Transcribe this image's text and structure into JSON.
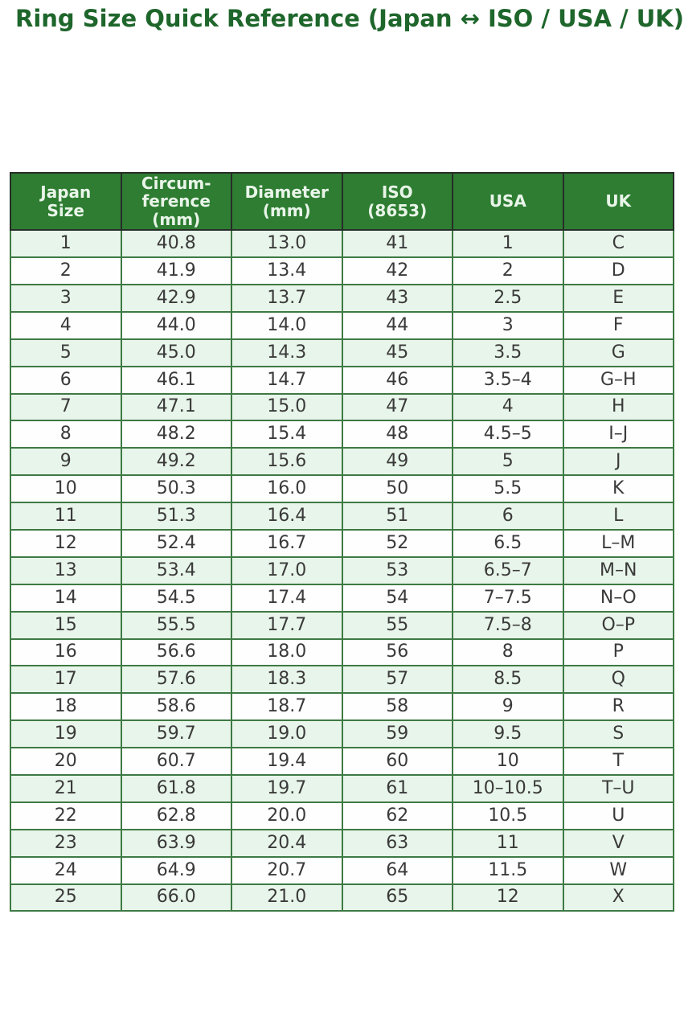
{
  "title": "Ring Size Quick Reference (Japan ↔ ISO / USA / UK)",
  "colors": {
    "title_green": "#1e662b",
    "header_bg_green": "#2e7d32",
    "header_text": "#e9f5e9",
    "row_alt_green": "#e8f5ea",
    "row_white": "#fdfefd",
    "grid_green": "#3e7a44",
    "cell_text": "#3a3a3a"
  },
  "chart_data": {
    "type": "table",
    "title": "Ring Size Quick Reference (Japan ↔ ISO / USA / UK)",
    "columns": [
      "Japan\nSize",
      "Circum-\nference\n(mm)",
      "Diameter\n(mm)",
      "ISO\n(8653)",
      "USA",
      "UK"
    ],
    "rows": [
      [
        "1",
        "40.8",
        "13.0",
        "41",
        "1",
        "C"
      ],
      [
        "2",
        "41.9",
        "13.4",
        "42",
        "2",
        "D"
      ],
      [
        "3",
        "42.9",
        "13.7",
        "43",
        "2.5",
        "E"
      ],
      [
        "4",
        "44.0",
        "14.0",
        "44",
        "3",
        "F"
      ],
      [
        "5",
        "45.0",
        "14.3",
        "45",
        "3.5",
        "G"
      ],
      [
        "6",
        "46.1",
        "14.7",
        "46",
        "3.5–4",
        "G–H"
      ],
      [
        "7",
        "47.1",
        "15.0",
        "47",
        "4",
        "H"
      ],
      [
        "8",
        "48.2",
        "15.4",
        "48",
        "4.5–5",
        "I–J"
      ],
      [
        "9",
        "49.2",
        "15.6",
        "49",
        "5",
        "J"
      ],
      [
        "10",
        "50.3",
        "16.0",
        "50",
        "5.5",
        "K"
      ],
      [
        "11",
        "51.3",
        "16.4",
        "51",
        "6",
        "L"
      ],
      [
        "12",
        "52.4",
        "16.7",
        "52",
        "6.5",
        "L–M"
      ],
      [
        "13",
        "53.4",
        "17.0",
        "53",
        "6.5–7",
        "M–N"
      ],
      [
        "14",
        "54.5",
        "17.4",
        "54",
        "7–7.5",
        "N–O"
      ],
      [
        "15",
        "55.5",
        "17.7",
        "55",
        "7.5–8",
        "O–P"
      ],
      [
        "16",
        "56.6",
        "18.0",
        "56",
        "8",
        "P"
      ],
      [
        "17",
        "57.6",
        "18.3",
        "57",
        "8.5",
        "Q"
      ],
      [
        "18",
        "58.6",
        "18.7",
        "58",
        "9",
        "R"
      ],
      [
        "19",
        "59.7",
        "19.0",
        "59",
        "9.5",
        "S"
      ],
      [
        "20",
        "60.7",
        "19.4",
        "60",
        "10",
        "T"
      ],
      [
        "21",
        "61.8",
        "19.7",
        "61",
        "10–10.5",
        "T–U"
      ],
      [
        "22",
        "62.8",
        "20.0",
        "62",
        "10.5",
        "U"
      ],
      [
        "23",
        "63.9",
        "20.4",
        "63",
        "11",
        "V"
      ],
      [
        "24",
        "64.9",
        "20.7",
        "64",
        "11.5",
        "W"
      ],
      [
        "25",
        "66.0",
        "21.0",
        "65",
        "12",
        "X"
      ]
    ]
  }
}
